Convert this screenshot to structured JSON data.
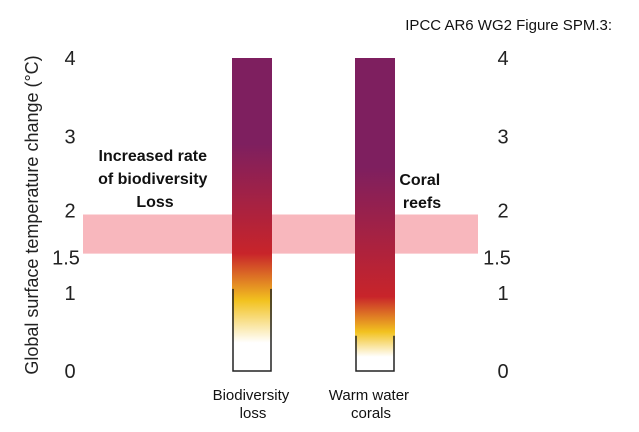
{
  "source_label": "IPCC AR6 WG2 Figure SPM.3:",
  "chart_data": {
    "type": "bar",
    "ylabel": "Global surface temperature change (°C)",
    "ylim": [
      0,
      4
    ],
    "yticks": [
      "0",
      "1",
      "1.5",
      "2",
      "3",
      "4"
    ],
    "ytick_values": [
      0,
      1,
      1.5,
      2,
      3,
      4
    ],
    "highlight_band": {
      "from": 1.5,
      "to": 2.0,
      "color": "#f8b7bd"
    },
    "categories": [
      "Biodiversity\nloss",
      "Warm water\ncorals"
    ],
    "category_lines": [
      [
        "Biodiversity",
        "loss"
      ],
      [
        "Warm water",
        "corals"
      ]
    ],
    "bars": [
      {
        "category": "Biodiversity loss",
        "max": 4,
        "risk_levels": [
          {
            "level": "white",
            "color": "#ffffff",
            "from": 0,
            "to": 0.6
          },
          {
            "level": "yellow",
            "color": "#f2c21f",
            "from": 0.6,
            "to": 1.2
          },
          {
            "level": "red",
            "color": "#c8242a",
            "from": 1.2,
            "to": 1.8
          },
          {
            "level": "purple",
            "color": "#7e1f5f",
            "from": 1.8,
            "to": 4
          }
        ]
      },
      {
        "category": "Warm water corals",
        "max": 4,
        "risk_levels": [
          {
            "level": "white",
            "color": "#ffffff",
            "from": 0,
            "to": 0.3
          },
          {
            "level": "yellow",
            "color": "#f2c21f",
            "from": 0.3,
            "to": 0.7
          },
          {
            "level": "red",
            "color": "#c8242a",
            "from": 0.7,
            "to": 1.2
          },
          {
            "level": "purple",
            "color": "#7e1f5f",
            "from": 1.2,
            "to": 4
          }
        ]
      }
    ],
    "annotations": [
      {
        "text_lines": [
          "Increased rate",
          "of biodiversity",
          "Loss"
        ]
      },
      {
        "text_lines": [
          "Coral",
          "reefs"
        ]
      }
    ]
  }
}
